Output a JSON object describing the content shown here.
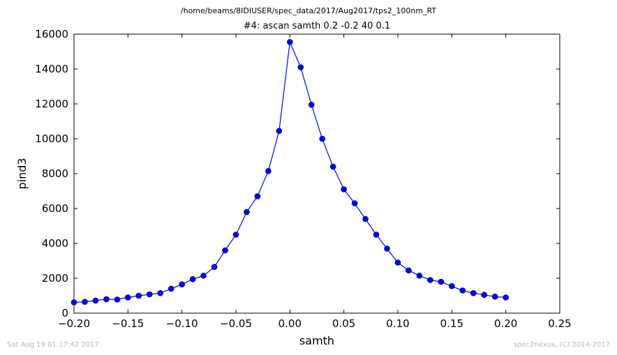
{
  "suptitle": "/home/beams/8IDIUSER/spec_data/2017/Aug2017/tps2_100nm_RT",
  "footer": {
    "timestamp": "Sat Aug 19 01:17:42 2017",
    "credit": "spec2nexus, (C) 2014-2017"
  },
  "colors": {
    "series": "#0000ff"
  },
  "chart_data": {
    "type": "line",
    "title": "#4: ascan  samth 0.2 -0.2  40 0.1",
    "xlabel": "samth",
    "ylabel": "pind3",
    "xlim": [
      -0.2,
      0.25
    ],
    "ylim": [
      0,
      16000
    ],
    "xticks": [
      "−0.20",
      "−0.15",
      "−0.10",
      "−0.05",
      "0.00",
      "0.05",
      "0.10",
      "0.15",
      "0.20",
      "0.25"
    ],
    "yticks": [
      "0",
      "2000",
      "4000",
      "6000",
      "8000",
      "10000",
      "12000",
      "14000",
      "16000"
    ],
    "x": [
      -0.2,
      -0.19,
      -0.18,
      -0.17,
      -0.16,
      -0.15,
      -0.14,
      -0.13,
      -0.12,
      -0.11,
      -0.1,
      -0.09,
      -0.08,
      -0.07,
      -0.06,
      -0.05,
      -0.04,
      -0.03,
      -0.02,
      -0.01,
      0.0,
      0.01,
      0.02,
      0.03,
      0.04,
      0.05,
      0.06,
      0.07,
      0.08,
      0.09,
      0.1,
      0.11,
      0.12,
      0.13,
      0.14,
      0.15,
      0.16,
      0.17,
      0.18,
      0.19,
      0.2
    ],
    "values": [
      620,
      650,
      720,
      800,
      780,
      900,
      1000,
      1080,
      1150,
      1400,
      1650,
      1950,
      2150,
      2650,
      3600,
      4500,
      5800,
      6700,
      8150,
      10450,
      15550,
      14100,
      11950,
      10000,
      8400,
      7100,
      6300,
      5400,
      4500,
      3700,
      2900,
      2450,
      2150,
      1900,
      1800,
      1550,
      1300,
      1150,
      1050,
      950,
      900
    ],
    "marker": "circle",
    "grid": false
  }
}
